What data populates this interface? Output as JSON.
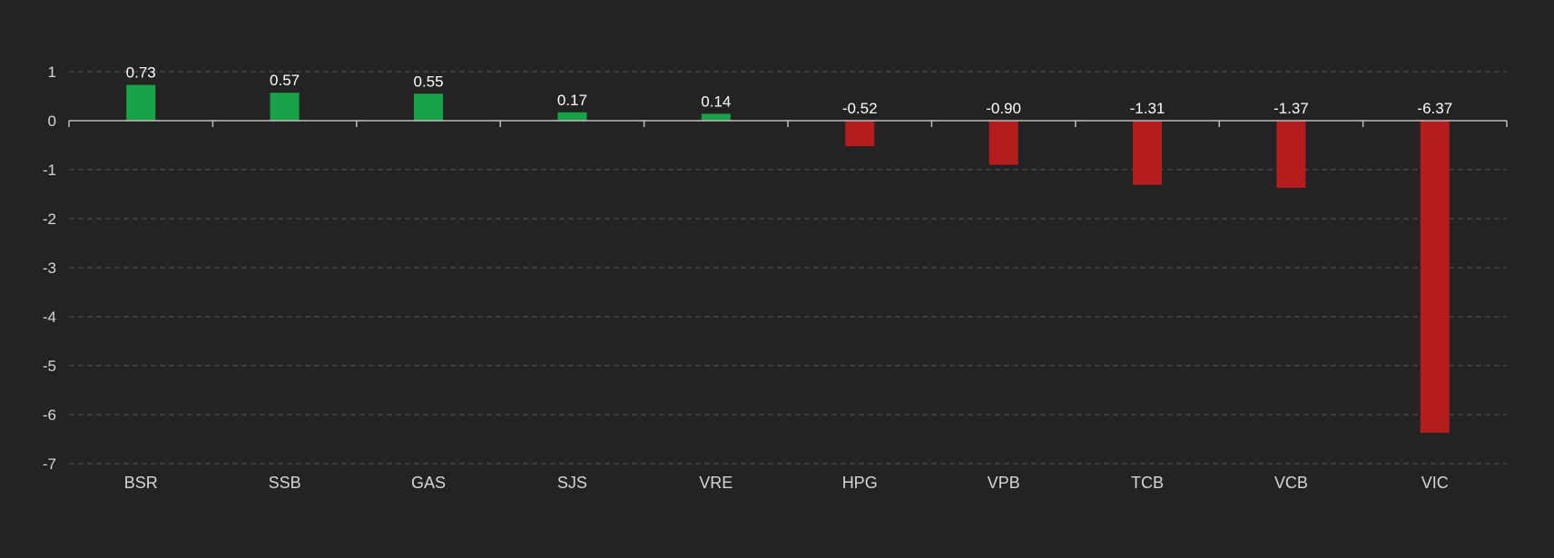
{
  "chart_data": {
    "type": "bar",
    "title": "",
    "xlabel": "",
    "ylabel": "",
    "categories": [
      "BSR",
      "SSB",
      "GAS",
      "SJS",
      "VRE",
      "HPG",
      "VPB",
      "TCB",
      "VCB",
      "VIC"
    ],
    "values": [
      0.73,
      0.57,
      0.55,
      0.17,
      0.14,
      -0.52,
      -0.9,
      -1.31,
      -1.37,
      -6.37
    ],
    "data_labels": [
      "0.73",
      "0.57",
      "0.55",
      "0.17",
      "0.14",
      "-0.52",
      "-0.90",
      "-1.31",
      "-1.37",
      "-6.37"
    ],
    "ylim": [
      -7,
      1
    ],
    "yticks": [
      1,
      0,
      -1,
      -2,
      -3,
      -4,
      -5,
      -6,
      -7
    ],
    "grid": true,
    "legend": "none",
    "colors": {
      "background": "#232323",
      "positive": "#18a349",
      "negative": "#b51c1e",
      "gridline": "#555555",
      "axis": "#bdbdbd",
      "text": "#d6d6d6",
      "label_text": "#ffffff"
    }
  }
}
